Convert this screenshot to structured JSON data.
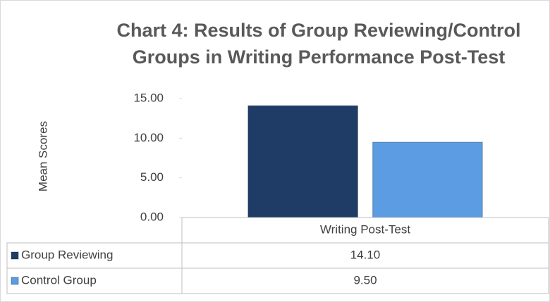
{
  "chart_data": {
    "type": "bar",
    "title": [
      "Chart 4: Results of Group Reviewing/Control",
      "Groups in Writing Performance Post-Test"
    ],
    "y_label": "Mean Scores",
    "categories": [
      "Writing Post-Test"
    ],
    "series": [
      {
        "name": "Group Reviewing",
        "color": "#1f3c66",
        "values": [
          14.1
        ],
        "value_labels": [
          "14.10"
        ]
      },
      {
        "name": "Control Group",
        "color": "#5b9ce2",
        "values": [
          9.5
        ],
        "value_labels": [
          "9.50"
        ]
      }
    ],
    "ylim": [
      0,
      15
    ],
    "yticks": [
      {
        "value": 0,
        "label": "0.00"
      },
      {
        "value": 5,
        "label": "5.00"
      },
      {
        "value": 10,
        "label": "10.00"
      },
      {
        "value": 15,
        "label": "15.00"
      }
    ],
    "grid": false,
    "data_table": true
  }
}
